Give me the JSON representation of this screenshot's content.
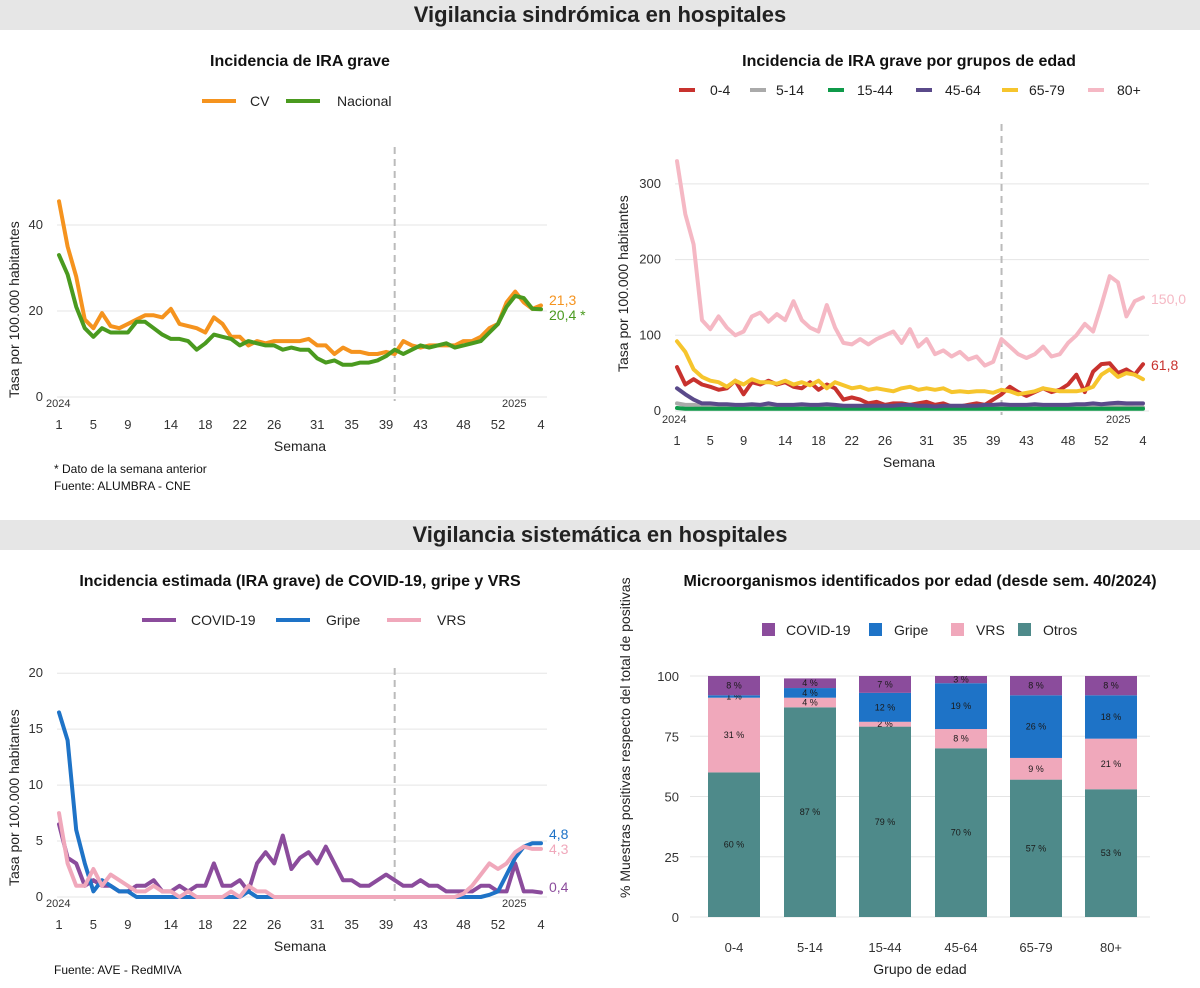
{
  "sections": {
    "top": "Vigilancia sindrómica en hospitales",
    "bottom": "Vigilancia sistemática en hospitales"
  },
  "week_labels": [
    "1",
    "5",
    "9",
    "14",
    "18",
    "22",
    "26",
    "31",
    "35",
    "39",
    "43",
    "48",
    "52",
    "4"
  ],
  "year_start": "2024",
  "year_end": "2025",
  "x_axis_label": "Semana",
  "y_axis_label": "Tasa por 100.000 habitantes",
  "colors": {
    "cv": "#f5931e",
    "nacional": "#4a9a1f",
    "age_0_4": "#c8322e",
    "age_5_14": "#aaaaaa",
    "age_15_44": "#0f9a4a",
    "age_45_64": "#5a4a8a",
    "age_65_79": "#f6c52d",
    "age_80": "#f5b8c4",
    "covid": "#8b4c9c",
    "gripe": "#1e73c7",
    "vrs": "#f0a8bb",
    "otros": "#4e8a8a",
    "vline": "#bbbbbb",
    "grid": "#e5e5e5"
  },
  "chart_data": [
    {
      "type": "line",
      "title": "Incidencia de IRA grave",
      "xlabel": "Semana",
      "ylabel": "Tasa por 100.000 habitantes",
      "ylim": [
        0,
        50
      ],
      "yticks": [
        0,
        20,
        40
      ],
      "grid": true,
      "legend_position": "top",
      "vertical_line_week": "40",
      "series": [
        {
          "name": "CV",
          "color": "#f5931e",
          "end_label": "21,3",
          "values": [
            45.5,
            35,
            28,
            18,
            16,
            19.5,
            16.5,
            16,
            17,
            18,
            19,
            19,
            18.5,
            20.5,
            17,
            16.5,
            16,
            15,
            18.5,
            17,
            14,
            14,
            12,
            13,
            12.5,
            13,
            13,
            13,
            13,
            13.5,
            12,
            12,
            10,
            11.5,
            10.5,
            10.5,
            10,
            10,
            10.5,
            10,
            13,
            12,
            11.5,
            12,
            12,
            12,
            12,
            13,
            13,
            14,
            16,
            17,
            22,
            24.5,
            22,
            20.5,
            21.3
          ]
        },
        {
          "name": "Nacional",
          "color": "#4a9a1f",
          "end_label": "20,4 *",
          "values": [
            33,
            28.5,
            21,
            16,
            14,
            16,
            15,
            15,
            15,
            17.5,
            17.5,
            16,
            14.5,
            13.5,
            13.5,
            13,
            11,
            12.5,
            14.5,
            14,
            13.5,
            12,
            13,
            12.5,
            12,
            12,
            11,
            11.5,
            11,
            11,
            9,
            8,
            8.5,
            7.5,
            7.5,
            8,
            8,
            8.5,
            9.5,
            11,
            10,
            11,
            12,
            11.5,
            12,
            12.5,
            11.5,
            12,
            12.5,
            13,
            15,
            17,
            21,
            23.5,
            23,
            20.5,
            20.4
          ]
        }
      ]
    },
    {
      "type": "line",
      "title": "Incidencia de IRA grave por grupos de edad",
      "xlabel": "Semana",
      "ylabel": "Tasa por 100.000 habitantes",
      "ylim": [
        0,
        350
      ],
      "yticks": [
        0,
        100,
        200,
        300
      ],
      "grid": true,
      "legend_position": "top",
      "vertical_line_week": "40",
      "series": [
        {
          "name": "0-4",
          "color": "#c8322e",
          "end_label": "61,8",
          "values": [
            58,
            35,
            42,
            35,
            32,
            28,
            30,
            40,
            22,
            38,
            35,
            40,
            35,
            38,
            32,
            30,
            38,
            28,
            35,
            30,
            15,
            18,
            15,
            10,
            12,
            8,
            10,
            10,
            8,
            10,
            12,
            8,
            10,
            6,
            6,
            8,
            10,
            8,
            15,
            22,
            32,
            25,
            20,
            25,
            30,
            25,
            28,
            35,
            48,
            25,
            52,
            62,
            63,
            50,
            55,
            48,
            61.8
          ]
        },
        {
          "name": "5-14",
          "color": "#aaaaaa",
          "values": [
            10,
            8,
            8,
            7,
            7,
            6,
            6,
            6,
            5,
            5,
            6,
            6,
            5,
            5,
            5,
            5,
            5,
            5,
            5,
            5,
            4,
            4,
            4,
            4,
            4,
            4,
            4,
            4,
            4,
            4,
            4,
            4,
            4,
            4,
            4,
            4,
            4,
            4,
            4,
            4,
            4,
            4,
            4,
            4,
            4,
            5,
            5,
            5,
            5,
            5,
            5,
            6,
            6,
            6,
            6,
            5,
            5
          ]
        },
        {
          "name": "15-44",
          "color": "#0f9a4a",
          "values": [
            4,
            3,
            3,
            3,
            3,
            3,
            3,
            3,
            3,
            3,
            3,
            3,
            3,
            3,
            3,
            3,
            3,
            3,
            3,
            3,
            3,
            3,
            3,
            3,
            3,
            3,
            3,
            3,
            3,
            3,
            3,
            3,
            3,
            3,
            3,
            3,
            3,
            3,
            3,
            3,
            3,
            3,
            3,
            3,
            3,
            3,
            3,
            3,
            3,
            3,
            3,
            3,
            3,
            3,
            3,
            3,
            3
          ]
        },
        {
          "name": "45-64",
          "color": "#5a4a8a",
          "values": [
            30,
            22,
            15,
            10,
            10,
            9,
            9,
            8,
            8,
            9,
            8,
            10,
            8,
            8,
            8,
            9,
            8,
            8,
            9,
            8,
            7,
            7,
            7,
            7,
            7,
            7,
            7,
            8,
            8,
            7,
            7,
            6,
            7,
            7,
            7,
            7,
            7,
            8,
            8,
            9,
            8,
            8,
            8,
            9,
            8,
            8,
            8,
            8,
            9,
            9,
            10,
            9,
            10,
            11,
            10,
            10,
            10
          ]
        },
        {
          "name": "65-79",
          "color": "#f6c52d",
          "values": [
            92,
            78,
            55,
            45,
            40,
            38,
            32,
            40,
            35,
            42,
            38,
            38,
            36,
            40,
            35,
            38,
            34,
            40,
            30,
            38,
            34,
            30,
            32,
            28,
            30,
            28,
            26,
            30,
            32,
            28,
            30,
            28,
            30,
            25,
            26,
            25,
            26,
            26,
            24,
            28,
            26,
            22,
            24,
            26,
            30,
            28,
            26,
            26,
            26,
            28,
            32,
            48,
            55,
            45,
            50,
            48,
            42
          ]
        },
        {
          "name": "80+",
          "color": "#f5b8c4",
          "end_label": "150,0",
          "values": [
            330,
            260,
            220,
            120,
            108,
            125,
            110,
            100,
            105,
            125,
            130,
            118,
            128,
            120,
            145,
            120,
            110,
            105,
            140,
            110,
            90,
            88,
            95,
            88,
            95,
            100,
            105,
            90,
            108,
            85,
            95,
            75,
            80,
            72,
            78,
            68,
            72,
            60,
            65,
            95,
            85,
            75,
            70,
            75,
            85,
            72,
            75,
            90,
            100,
            115,
            105,
            140,
            178,
            170,
            125,
            145,
            150
          ]
        }
      ]
    },
    {
      "type": "line",
      "title": "Incidencia estimada (IRA grave) de COVID-19, gripe y VRS",
      "xlabel": "Semana",
      "ylabel": "Tasa por 100.000 habitantes",
      "ylim": [
        0,
        21
      ],
      "yticks": [
        0,
        5,
        10,
        15,
        20
      ],
      "grid": true,
      "legend_position": "top",
      "vertical_line_week": "40",
      "series": [
        {
          "name": "COVID-19",
          "color": "#8b4c9c",
          "end_label": "0,4",
          "values": [
            6.5,
            3.5,
            3,
            1,
            1.5,
            1,
            1,
            0.5,
            0.5,
            1,
            1,
            1.5,
            0.5,
            0.5,
            1,
            0.5,
            1,
            1,
            3,
            1,
            1,
            1.5,
            0.5,
            3,
            4,
            3,
            5.5,
            2.5,
            3.5,
            4,
            3,
            4.5,
            3,
            1.5,
            1.5,
            1,
            1,
            1.5,
            2,
            1.5,
            1,
            1,
            1.5,
            1,
            1,
            0.5,
            0.5,
            0.5,
            0.5,
            1,
            1,
            0.5,
            0.5,
            3,
            0.5,
            0.5,
            0.4
          ]
        },
        {
          "name": "Gripe",
          "color": "#1e73c7",
          "end_label": "4,8",
          "values": [
            16.5,
            14,
            6,
            3,
            0.5,
            1.5,
            1,
            0.5,
            0.5,
            0,
            0,
            0,
            0,
            0,
            0,
            0,
            0,
            0,
            0,
            0,
            0,
            0,
            0.5,
            0,
            0,
            0,
            0,
            0,
            0,
            0,
            0,
            0,
            0,
            0,
            0,
            0,
            0,
            0,
            0,
            0,
            0,
            0,
            0,
            0,
            0,
            0,
            0,
            0,
            0,
            0,
            0.2,
            0.5,
            2,
            3.5,
            4.5,
            4.8,
            4.8
          ]
        },
        {
          "name": "VRS",
          "color": "#f0a8bb",
          "end_label": "4,3",
          "values": [
            7.5,
            3,
            1,
            1,
            2.5,
            1,
            2,
            1.5,
            1,
            0.5,
            0.5,
            1,
            0.5,
            0.5,
            0,
            0.5,
            0,
            0,
            0,
            0,
            0.5,
            0,
            1,
            0.5,
            0.5,
            0,
            0,
            0,
            0,
            0,
            0,
            0,
            0,
            0,
            0,
            0,
            0,
            0,
            0,
            0,
            0,
            0,
            0,
            0,
            0,
            0,
            0,
            0.3,
            1,
            2,
            3,
            2.5,
            3,
            4,
            4.5,
            4.3,
            4.3
          ]
        }
      ]
    },
    {
      "type": "bar",
      "stacked": true,
      "title": "Microorganismos identificados por edad (desde sem. 40/2024)",
      "xlabel": "Grupo de edad",
      "ylabel": "% Muestras positivas respecto del total de positivas",
      "ylim": [
        0,
        100
      ],
      "yticks": [
        0,
        25,
        50,
        75,
        100
      ],
      "legend_position": "top",
      "categories": [
        "0-4",
        "5-14",
        "15-44",
        "45-64",
        "65-79",
        "80+"
      ],
      "series": [
        {
          "name": "Otros",
          "color": "#4e8a8a",
          "values": [
            60,
            87,
            79,
            70,
            57,
            53
          ],
          "labels": [
            "60 %",
            "87 %",
            "79 %",
            "70 %",
            "57 %",
            "53 %"
          ]
        },
        {
          "name": "VRS",
          "color": "#f0a8bb",
          "values": [
            31,
            4,
            2,
            8,
            9,
            21
          ],
          "labels": [
            "31 %",
            "4 %",
            "2 %",
            "8 %",
            "9 %",
            "21 %"
          ]
        },
        {
          "name": "Gripe",
          "color": "#1e73c7",
          "values": [
            1,
            4,
            12,
            19,
            26,
            18
          ],
          "labels": [
            "1 %",
            "4 %",
            "12 %",
            "19 %",
            "26 %",
            "18 %"
          ]
        },
        {
          "name": "COVID-19",
          "color": "#8b4c9c",
          "values": [
            8,
            4,
            7,
            3,
            8,
            8
          ],
          "labels": [
            "8 %",
            "4 %",
            "7 %",
            "3 %",
            "8 %",
            "8 %"
          ]
        }
      ]
    }
  ],
  "notes": {
    "p1_asterisk": "* Dato de la semana anterior",
    "p1_source": "Fuente: ALUMBRA - CNE",
    "p3_source": "Fuente: AVE - RedMIVA"
  }
}
